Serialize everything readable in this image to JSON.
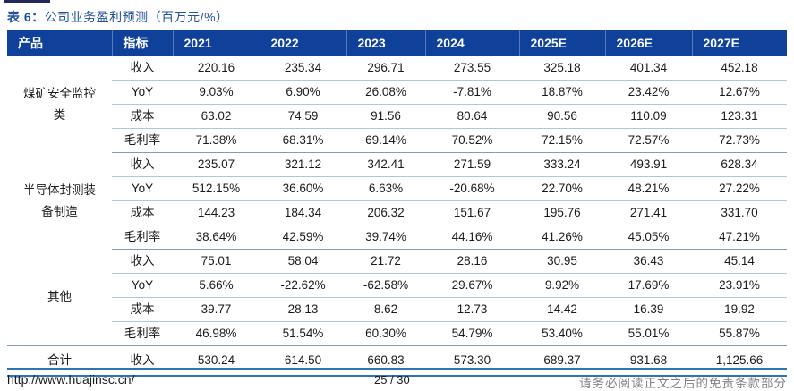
{
  "page": {
    "title_prefix": "表 6：",
    "title_text": "公司业务盈利预测（百万元/%）"
  },
  "table": {
    "headers": [
      "产品",
      "指标",
      "2021",
      "2022",
      "2023",
      "2024",
      "2025E",
      "2026E",
      "2027E"
    ],
    "groups": [
      {
        "product": "煤矿安全监控类",
        "rows": [
          {
            "indicator": "收入",
            "values": [
              "220.16",
              "235.34",
              "296.71",
              "273.55",
              "325.18",
              "401.34",
              "452.18"
            ]
          },
          {
            "indicator": "YoY",
            "values": [
              "9.03%",
              "6.90%",
              "26.08%",
              "-7.81%",
              "18.87%",
              "23.42%",
              "12.67%"
            ]
          },
          {
            "indicator": "成本",
            "values": [
              "63.02",
              "74.59",
              "91.56",
              "80.64",
              "90.56",
              "110.09",
              "123.31"
            ]
          },
          {
            "indicator": "毛利率",
            "values": [
              "71.38%",
              "68.31%",
              "69.14%",
              "70.52%",
              "72.15%",
              "72.57%",
              "72.73%"
            ]
          }
        ]
      },
      {
        "product": "半导体封测装备制造",
        "rows": [
          {
            "indicator": "收入",
            "values": [
              "235.07",
              "321.12",
              "342.41",
              "271.59",
              "333.24",
              "493.91",
              "628.34"
            ]
          },
          {
            "indicator": "YoY",
            "values": [
              "512.15%",
              "36.60%",
              "6.63%",
              "-20.68%",
              "22.70%",
              "48.21%",
              "27.22%"
            ]
          },
          {
            "indicator": "成本",
            "values": [
              "144.23",
              "184.34",
              "206.32",
              "151.67",
              "195.76",
              "271.41",
              "331.70"
            ]
          },
          {
            "indicator": "毛利率",
            "values": [
              "38.64%",
              "42.59%",
              "39.74%",
              "44.16%",
              "41.26%",
              "45.05%",
              "47.21%"
            ]
          }
        ]
      },
      {
        "product": "其他",
        "rows": [
          {
            "indicator": "收入",
            "values": [
              "75.01",
              "58.04",
              "21.72",
              "28.16",
              "30.95",
              "36.43",
              "45.14"
            ]
          },
          {
            "indicator": "YoY",
            "values": [
              "5.66%",
              "-22.62%",
              "-62.58%",
              "29.67%",
              "9.92%",
              "17.69%",
              "23.91%"
            ]
          },
          {
            "indicator": "成本",
            "values": [
              "39.77",
              "28.13",
              "8.62",
              "12.73",
              "14.42",
              "16.39",
              "19.92"
            ]
          },
          {
            "indicator": "毛利率",
            "values": [
              "46.98%",
              "51.54%",
              "60.30%",
              "54.79%",
              "53.40%",
              "55.01%",
              "55.87%"
            ]
          }
        ]
      },
      {
        "product": "合计",
        "rows": [
          {
            "indicator": "收入",
            "values": [
              "530.24",
              "614.50",
              "660.83",
              "573.30",
              "689.37",
              "931.68",
              "1,125.66"
            ]
          }
        ]
      }
    ]
  },
  "footer": {
    "url": "http://www.huajinsc.cn/",
    "page_number": "25 / 30",
    "disclaimer": "请务必阅读正文之后的免责条款部分"
  },
  "colors": {
    "header_bg": "#10419A",
    "title_blue": "#215198",
    "row_line": "#AEC6DE",
    "group_line": "#7F9DB9",
    "accent_line": "#2E74B5",
    "disclaimer_gray": "#808080"
  }
}
